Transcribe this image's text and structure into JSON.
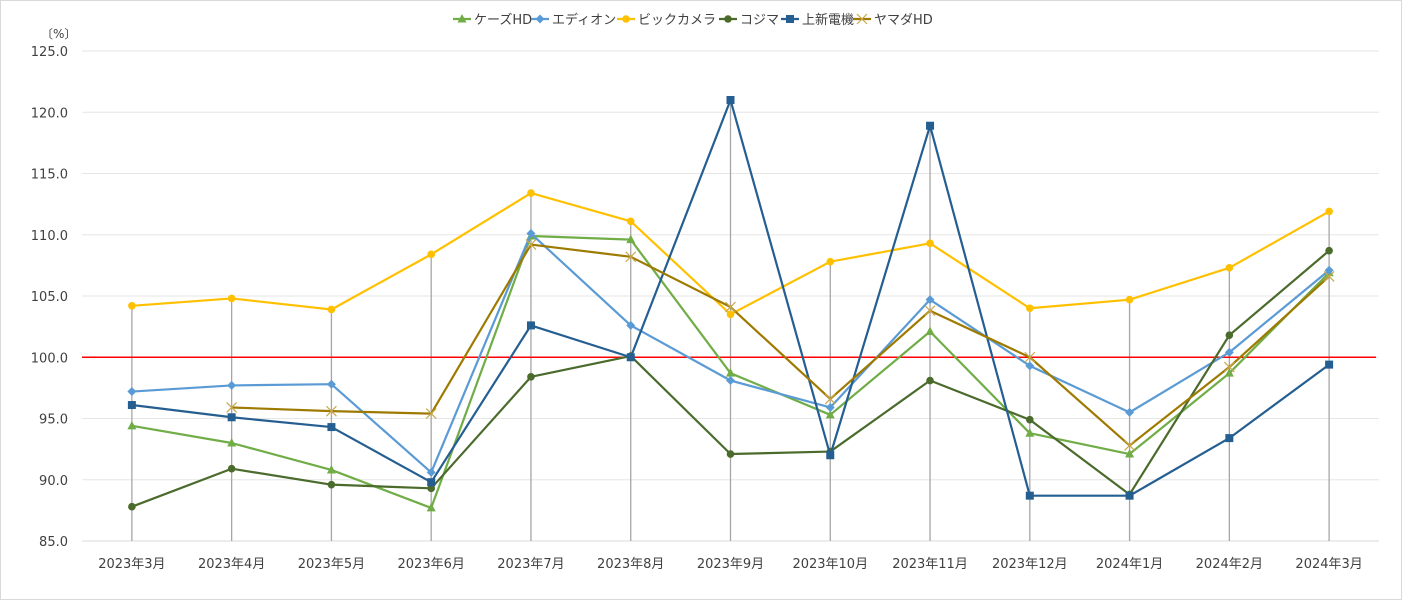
{
  "chart_data": {
    "type": "line",
    "unit_label": "〔%〕",
    "categories": [
      "2023年3月",
      "2023年4月",
      "2023年5月",
      "2023年6月",
      "2023年7月",
      "2023年8月",
      "2023年9月",
      "2023年10月",
      "2023年11月",
      "2023年12月",
      "2024年1月",
      "2024年2月",
      "2024年3月"
    ],
    "ylim": [
      85,
      125
    ],
    "yticks": [
      "85.0",
      "90.0",
      "95.0",
      "100.0",
      "105.0",
      "110.0",
      "115.0",
      "120.0",
      "125.0"
    ],
    "grid": true,
    "legend": "top",
    "reference_line": {
      "value": 100,
      "color": "#ff0000"
    },
    "drop_lines": true,
    "series": [
      {
        "name": "ケーズHD",
        "color": "#70ad47",
        "marker": "triangle",
        "values": [
          94.4,
          93.0,
          90.8,
          87.7,
          109.9,
          109.6,
          98.7,
          95.3,
          102.1,
          93.8,
          92.1,
          98.7,
          106.9
        ]
      },
      {
        "name": "エディオン",
        "color": "#5b9bd5",
        "marker": "diamond",
        "values": [
          97.2,
          97.7,
          97.8,
          90.6,
          110.1,
          102.6,
          98.1,
          95.9,
          104.7,
          99.3,
          95.5,
          100.4,
          107.1
        ]
      },
      {
        "name": "ビックカメラ",
        "color": "#ffc000",
        "marker": "circle",
        "values": [
          104.2,
          104.8,
          103.9,
          108.4,
          113.4,
          111.1,
          103.5,
          107.8,
          109.3,
          104.0,
          104.7,
          107.3,
          111.9
        ]
      },
      {
        "name": "コジマ",
        "color": "#4a6b2c",
        "marker": "circle",
        "values": [
          87.8,
          90.9,
          89.6,
          89.3,
          98.4,
          100.1,
          92.1,
          92.3,
          98.1,
          94.9,
          88.8,
          101.8,
          108.7
        ]
      },
      {
        "name": "上新電機",
        "color": "#255e91",
        "marker": "square",
        "values": [
          96.1,
          95.1,
          94.3,
          89.8,
          102.6,
          100.0,
          121.0,
          92.0,
          118.9,
          88.7,
          88.7,
          93.4,
          99.4
        ]
      },
      {
        "name": "ヤマダHD",
        "color": "#9e7a00",
        "marker": "x",
        "values": [
          null,
          95.9,
          95.6,
          95.4,
          109.2,
          108.2,
          104.1,
          96.6,
          103.8,
          100.0,
          92.8,
          99.2,
          106.6
        ]
      }
    ]
  }
}
